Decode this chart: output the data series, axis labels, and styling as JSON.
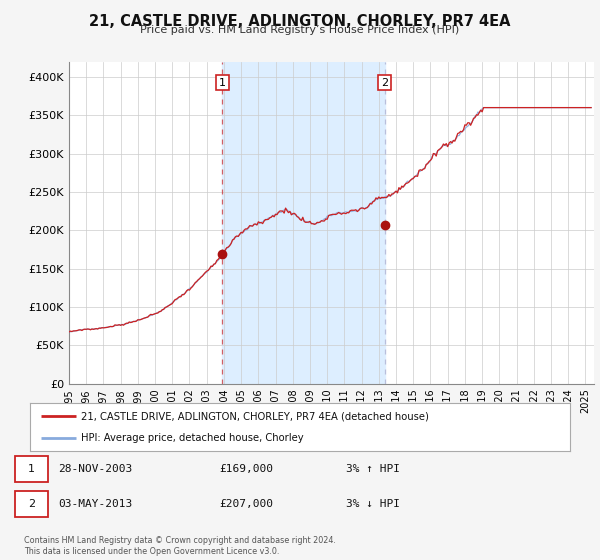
{
  "title": "21, CASTLE DRIVE, ADLINGTON, CHORLEY, PR7 4EA",
  "subtitle": "Price paid vs. HM Land Registry’s House Price Index (HPI)",
  "xlim": [
    1995.0,
    2025.5
  ],
  "ylim": [
    0,
    420000
  ],
  "yticks": [
    0,
    50000,
    100000,
    150000,
    200000,
    250000,
    300000,
    350000,
    400000
  ],
  "ytick_labels": [
    "£0",
    "£50K",
    "£100K",
    "£150K",
    "£200K",
    "£250K",
    "£300K",
    "£350K",
    "£400K"
  ],
  "xticks": [
    1995,
    1996,
    1997,
    1998,
    1999,
    2000,
    2001,
    2002,
    2003,
    2004,
    2005,
    2006,
    2007,
    2008,
    2009,
    2010,
    2011,
    2012,
    2013,
    2014,
    2015,
    2016,
    2017,
    2018,
    2019,
    2020,
    2021,
    2022,
    2023,
    2024,
    2025
  ],
  "sale1_x": 2003.91,
  "sale1_y": 169000,
  "sale1_label": "1",
  "sale1_date": "28-NOV-2003",
  "sale1_price": "£169,000",
  "sale1_hpi": "3% ↑ HPI",
  "sale2_x": 2013.34,
  "sale2_y": 207000,
  "sale2_label": "2",
  "sale2_date": "03-MAY-2013",
  "sale2_price": "£207,000",
  "sale2_hpi": "3% ↓ HPI",
  "shade_color": "#ddeeff",
  "line1_color": "#cc2222",
  "line2_color": "#88aadd",
  "dot_color": "#aa1111",
  "legend1_label": "21, CASTLE DRIVE, ADLINGTON, CHORLEY, PR7 4EA (detached house)",
  "legend2_label": "HPI: Average price, detached house, Chorley",
  "footnote": "Contains HM Land Registry data © Crown copyright and database right 2024.\nThis data is licensed under the Open Government Licence v3.0.",
  "background_color": "#f5f5f5",
  "plot_bg_color": "#ffffff",
  "grid_color": "#cccccc"
}
